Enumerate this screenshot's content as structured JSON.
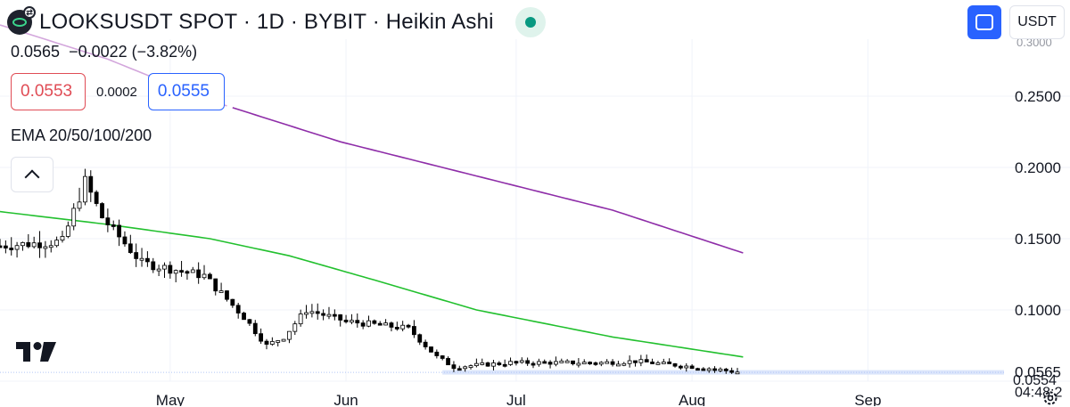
{
  "header": {
    "title": "LOOKSUSDT SPOT · 1D · BYBIT · Heikin Ashi",
    "ohlc_price": "0.0565",
    "ohlc_change": "−0.0022 (−3.82%)",
    "sell_price": "0.0553",
    "spread": "0.0002",
    "buy_price": "0.0555",
    "indicator": "EMA 20/50/100/200",
    "currency": "USDT"
  },
  "icons": {
    "logo": "looks-logo-icon",
    "market_status": "market-open-dot-icon",
    "collapse": "chevron-up-icon",
    "fullscreen": "fullscreen-icon",
    "tradingview": "tradingview-logo-icon",
    "settings": "gear-icon"
  },
  "colors": {
    "up_candle": "#ffffff",
    "down_candle": "#000000",
    "ema_fast": "#22c02e",
    "ema_slow": "#8e2da8",
    "ema_slow_faded": "#d3a6dc",
    "last_price_bg": "#dbe5fb",
    "sell": "#e04c55",
    "buy": "#2962ff"
  },
  "chart_data": {
    "type": "candlestick",
    "style": "Heikin Ashi",
    "symbol": "LOOKSUSDT",
    "grid": true,
    "price_axis": {
      "ticks": [
        "0.2500",
        "0.2000",
        "0.1500",
        "0.1000"
      ],
      "ylim": [
        0.05,
        0.29
      ],
      "last_price_label": "0.0565",
      "countdown_label": "04:48:2",
      "partial_top_label": "0.3000",
      "partial_bottom_label": "0.0554",
      "last_price": 0.0565
    },
    "time_axis": {
      "labels": [
        "May",
        "Jun",
        "Jul",
        "Aug",
        "Sep"
      ],
      "start_date": "2023-04-01",
      "end_date": "2023-09-25",
      "last_candle_date": "2023-08-09"
    },
    "series": [
      {
        "name": "EMA",
        "color": "#22c02e",
        "points": [
          {
            "date": "2023-04-01",
            "value": 0.169
          },
          {
            "date": "2023-04-20",
            "value": 0.16
          },
          {
            "date": "2023-05-08",
            "value": 0.15
          },
          {
            "date": "2023-05-22",
            "value": 0.138
          },
          {
            "date": "2023-06-06",
            "value": 0.121
          },
          {
            "date": "2023-06-24",
            "value": 0.1
          },
          {
            "date": "2023-07-18",
            "value": 0.081
          },
          {
            "date": "2023-08-10",
            "value": 0.067
          }
        ]
      },
      {
        "name": "EMA",
        "color": "#8e2da8",
        "points": [
          {
            "date": "2023-04-01",
            "value": 0.3
          },
          {
            "date": "2023-04-20",
            "value": 0.276
          },
          {
            "date": "2023-05-08",
            "value": 0.247
          },
          {
            "date": "2023-05-31",
            "value": 0.218
          },
          {
            "date": "2023-06-24",
            "value": 0.194
          },
          {
            "date": "2023-07-18",
            "value": 0.17
          },
          {
            "date": "2023-08-10",
            "value": 0.14
          }
        ]
      }
    ],
    "candles_anchor": [
      {
        "date": "2023-04-01",
        "price": 0.145
      },
      {
        "date": "2023-04-12",
        "price": 0.148
      },
      {
        "date": "2023-04-16",
        "price": 0.19
      },
      {
        "date": "2023-04-19",
        "price": 0.165
      },
      {
        "date": "2023-04-26",
        "price": 0.133
      },
      {
        "date": "2023-05-07",
        "price": 0.124
      },
      {
        "date": "2023-05-14",
        "price": 0.095
      },
      {
        "date": "2023-05-18",
        "price": 0.075
      },
      {
        "date": "2023-05-21",
        "price": 0.081
      },
      {
        "date": "2023-05-25",
        "price": 0.1
      },
      {
        "date": "2023-06-01",
        "price": 0.092
      },
      {
        "date": "2023-06-12",
        "price": 0.087
      },
      {
        "date": "2023-06-17",
        "price": 0.067
      },
      {
        "date": "2023-06-20",
        "price": 0.06
      },
      {
        "date": "2023-06-30",
        "price": 0.063
      },
      {
        "date": "2023-07-16",
        "price": 0.063
      },
      {
        "date": "2023-07-22",
        "price": 0.064
      },
      {
        "date": "2023-08-04",
        "price": 0.059
      },
      {
        "date": "2023-08-09",
        "price": 0.0565
      }
    ]
  }
}
